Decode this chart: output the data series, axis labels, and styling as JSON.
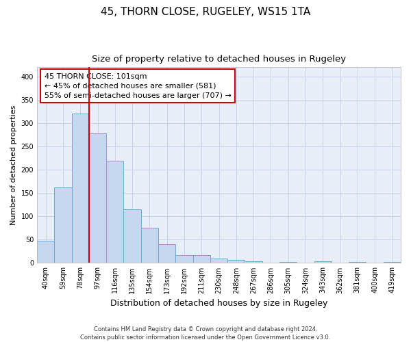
{
  "title": "45, THORN CLOSE, RUGELEY, WS15 1TA",
  "subtitle": "Size of property relative to detached houses in Rugeley",
  "xlabel": "Distribution of detached houses by size in Rugeley",
  "ylabel": "Number of detached properties",
  "bar_labels": [
    "40sqm",
    "59sqm",
    "78sqm",
    "97sqm",
    "116sqm",
    "135sqm",
    "154sqm",
    "173sqm",
    "192sqm",
    "211sqm",
    "230sqm",
    "248sqm",
    "267sqm",
    "286sqm",
    "305sqm",
    "324sqm",
    "343sqm",
    "362sqm",
    "381sqm",
    "400sqm",
    "419sqm"
  ],
  "all_bar_values": [
    48,
    162,
    320,
    278,
    220,
    115,
    75,
    40,
    17,
    17,
    10,
    6,
    4,
    0,
    2,
    0,
    4,
    0,
    2,
    0,
    2
  ],
  "bar_color": "#c5d8f0",
  "bar_edge_color": "#6aaad4",
  "vline_color": "#cc0000",
  "annotation_text": "45 THORN CLOSE: 101sqm\n← 45% of detached houses are smaller (581)\n55% of semi-detached houses are larger (707) →",
  "annotation_box_color": "white",
  "annotation_box_edge": "#cc0000",
  "ylim": [
    0,
    420
  ],
  "yticks": [
    0,
    50,
    100,
    150,
    200,
    250,
    300,
    350,
    400
  ],
  "grid_color": "#c8d4e8",
  "plot_bg_color": "#e8eef8",
  "fig_bg_color": "#ffffff",
  "footnote": "Contains HM Land Registry data © Crown copyright and database right 2024.\nContains public sector information licensed under the Open Government Licence v3.0.",
  "title_fontsize": 11,
  "subtitle_fontsize": 9.5,
  "xlabel_fontsize": 9,
  "ylabel_fontsize": 8,
  "tick_fontsize": 7,
  "annot_fontsize": 8,
  "footnote_fontsize": 6
}
